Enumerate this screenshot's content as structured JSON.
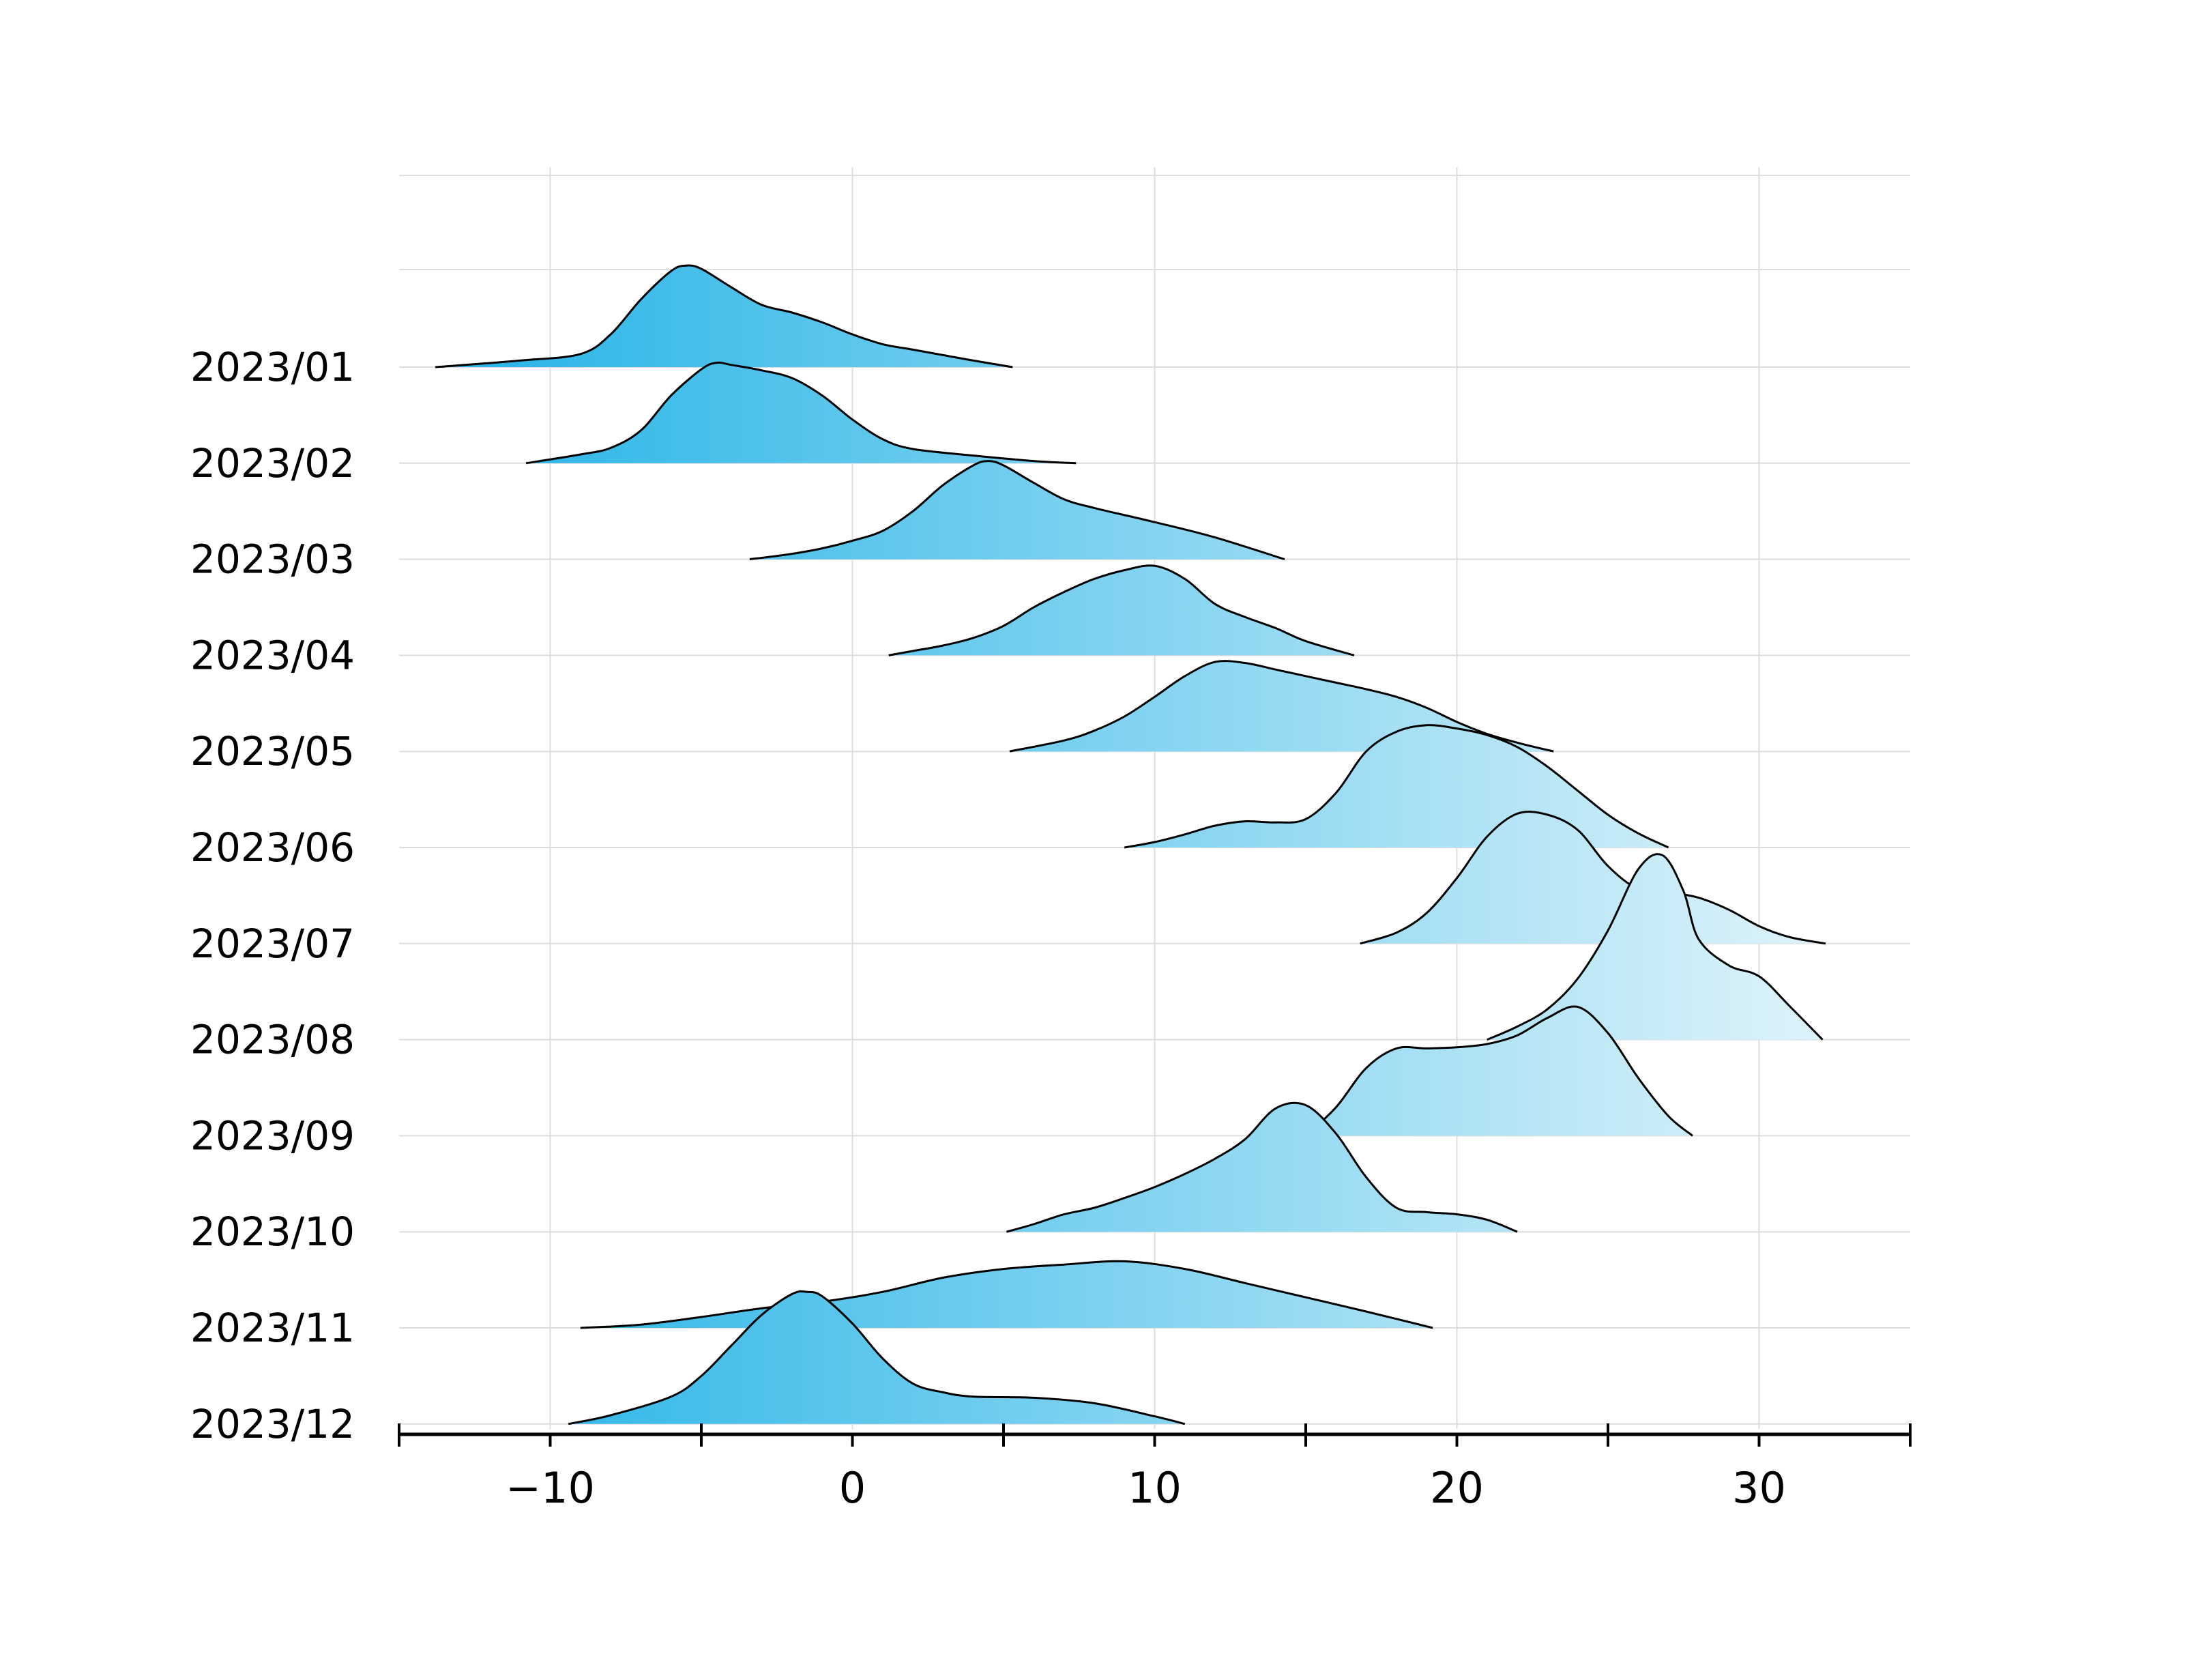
{
  "chart_data": {
    "type": "ridgeline",
    "title": "",
    "xlabel": "",
    "ylabel": "",
    "xlim": [
      -15,
      35
    ],
    "x_ticks": [
      -10,
      0,
      10,
      20,
      30
    ],
    "x_tick_labels": [
      "−10",
      "0",
      "10",
      "20",
      "30"
    ],
    "x_minor_ticks": [
      -15,
      -5,
      5,
      15,
      25,
      35
    ],
    "grid": true,
    "colors": {
      "dark": "#1fb1e6",
      "light": "#eaf7fb",
      "outline": "#000000",
      "grid": "#dddddd"
    },
    "series": [
      {
        "name": "2023/01",
        "x": [
          -13.8,
          -11,
          -9,
          -8,
          -7,
          -6,
          -5.5,
          -5,
          -4,
          -3,
          -2,
          -1,
          0,
          1,
          2,
          3,
          4,
          5.3
        ],
        "density": [
          0.0,
          0.06,
          0.12,
          0.3,
          0.62,
          0.88,
          0.93,
          0.9,
          0.73,
          0.57,
          0.5,
          0.41,
          0.3,
          0.21,
          0.16,
          0.11,
          0.06,
          0.0
        ]
      },
      {
        "name": "2023/02",
        "x": [
          -10.8,
          -9,
          -8,
          -7,
          -6,
          -5,
          -4.5,
          -4,
          -3,
          -2,
          -1,
          0,
          1,
          2,
          4,
          6,
          7.4
        ],
        "density": [
          0.0,
          0.08,
          0.14,
          0.3,
          0.62,
          0.86,
          0.92,
          0.9,
          0.85,
          0.78,
          0.62,
          0.4,
          0.22,
          0.13,
          0.07,
          0.02,
          0.0
        ]
      },
      {
        "name": "2023/03",
        "x": [
          -3.4,
          -2,
          -1,
          0,
          1,
          2,
          3,
          4,
          4.5,
          5,
          6,
          7,
          8,
          10,
          12,
          14.3
        ],
        "density": [
          0.0,
          0.05,
          0.1,
          0.17,
          0.26,
          0.44,
          0.68,
          0.86,
          0.9,
          0.86,
          0.7,
          0.55,
          0.47,
          0.34,
          0.2,
          0.0
        ]
      },
      {
        "name": "2023/04",
        "x": [
          1.2,
          2,
          3,
          4,
          5,
          6,
          7,
          8,
          9,
          10,
          11,
          12,
          13,
          14,
          15,
          16.6
        ],
        "density": [
          0.0,
          0.04,
          0.09,
          0.16,
          0.27,
          0.44,
          0.58,
          0.7,
          0.78,
          0.82,
          0.7,
          0.47,
          0.35,
          0.25,
          0.13,
          0.0
        ]
      },
      {
        "name": "2023/05",
        "x": [
          5.2,
          7,
          8,
          9,
          10,
          11,
          12,
          13,
          14,
          15,
          16,
          17,
          18,
          19,
          20,
          21,
          22,
          23.2
        ],
        "density": [
          0.0,
          0.1,
          0.19,
          0.32,
          0.5,
          0.69,
          0.82,
          0.81,
          0.75,
          0.69,
          0.63,
          0.57,
          0.5,
          0.4,
          0.27,
          0.16,
          0.08,
          0.0
        ]
      },
      {
        "name": "2023/06",
        "x": [
          9,
          10,
          11,
          12,
          13,
          14,
          15,
          16,
          17,
          18,
          19,
          20,
          21,
          22,
          23,
          24,
          25,
          26,
          27
        ],
        "density": [
          0.0,
          0.05,
          0.12,
          0.2,
          0.24,
          0.23,
          0.26,
          0.5,
          0.88,
          1.06,
          1.12,
          1.09,
          1.03,
          0.92,
          0.74,
          0.52,
          0.3,
          0.13,
          0.0
        ]
      },
      {
        "name": "2023/07",
        "x": [
          16.8,
          18,
          19,
          20,
          21,
          22,
          23,
          24,
          25,
          26,
          27,
          28,
          29,
          30,
          31,
          32.2
        ],
        "density": [
          0.0,
          0.1,
          0.28,
          0.6,
          0.98,
          1.19,
          1.18,
          1.04,
          0.71,
          0.5,
          0.47,
          0.42,
          0.31,
          0.16,
          0.06,
          0.0
        ]
      },
      {
        "name": "2023/08",
        "x": [
          21,
          22,
          23,
          24,
          25,
          26,
          26.8,
          27.5,
          28,
          29,
          30,
          31,
          32.1
        ],
        "density": [
          0.0,
          0.12,
          0.28,
          0.56,
          1.0,
          1.56,
          1.69,
          1.36,
          0.92,
          0.68,
          0.58,
          0.31,
          0.0
        ]
      },
      {
        "name": "2023/09",
        "x": [
          15,
          16,
          17,
          18,
          19,
          20,
          21,
          22,
          23,
          24,
          25,
          26,
          27,
          27.8
        ],
        "density": [
          0.0,
          0.26,
          0.62,
          0.8,
          0.8,
          0.81,
          0.84,
          0.92,
          1.08,
          1.18,
          0.94,
          0.53,
          0.18,
          0.0
        ]
      },
      {
        "name": "2023/10",
        "x": [
          5.1,
          6,
          7,
          8,
          9,
          10,
          11,
          12,
          13,
          14,
          15,
          16,
          17,
          18,
          19,
          20,
          21,
          22
        ],
        "density": [
          0.0,
          0.07,
          0.16,
          0.22,
          0.31,
          0.41,
          0.53,
          0.67,
          0.85,
          1.13,
          1.16,
          0.9,
          0.5,
          0.22,
          0.18,
          0.16,
          0.11,
          0.0
        ]
      },
      {
        "name": "2023/11",
        "x": [
          -9,
          -7,
          -5,
          -3,
          -1,
          1,
          3,
          5,
          7,
          9,
          11,
          13,
          15,
          17,
          19.2
        ],
        "density": [
          0.0,
          0.03,
          0.1,
          0.18,
          0.24,
          0.33,
          0.46,
          0.54,
          0.58,
          0.61,
          0.54,
          0.41,
          0.28,
          0.15,
          0.0
        ]
      },
      {
        "name": "2023/12",
        "x": [
          -9.4,
          -8,
          -6,
          -5,
          -4,
          -3,
          -2,
          -1.5,
          -1,
          0,
          1,
          2,
          3,
          4,
          6,
          8,
          10,
          11
        ],
        "density": [
          0.0,
          0.08,
          0.25,
          0.44,
          0.72,
          1.0,
          1.19,
          1.21,
          1.17,
          0.92,
          0.6,
          0.37,
          0.29,
          0.25,
          0.24,
          0.19,
          0.07,
          0.0
        ]
      }
    ]
  }
}
